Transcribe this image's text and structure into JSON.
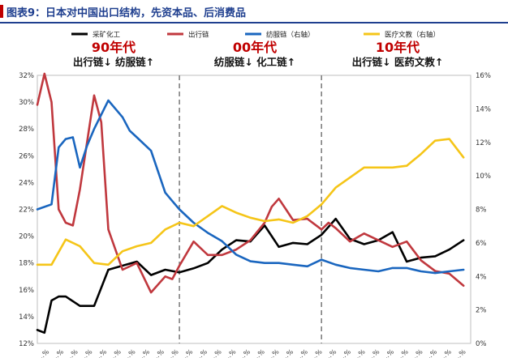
{
  "title": "图表9：日本对中国出口结构，先资本品、后消费品",
  "chart_data": {
    "type": "line",
    "xlim": [
      1990,
      2020.5
    ],
    "ylim_left": [
      12,
      32
    ],
    "ylim_right": [
      0,
      16
    ],
    "left_ticks": [
      "12%",
      "14%",
      "16%",
      "18%",
      "20%",
      "22%",
      "24%",
      "26%",
      "28%",
      "30%",
      "32%"
    ],
    "right_ticks": [
      "0%",
      "2%",
      "4%",
      "6%",
      "8%",
      "10%",
      "12%",
      "14%",
      "16%"
    ],
    "x_tick_labels": [
      "…%",
      "…%",
      "…%",
      "…%",
      "…%",
      "…%",
      "…%",
      "…%",
      "…%",
      "…%",
      "…%",
      "…%",
      "…%",
      "…%",
      "…%",
      "…%",
      "…%",
      "…%",
      "…%",
      "…%",
      "…%",
      "…%",
      "…%",
      "…%",
      "…%",
      "…%",
      "…%",
      "…%",
      "…%",
      "…%"
    ],
    "dividers": [
      2000,
      2010
    ],
    "eras": [
      {
        "year_label": "90年代",
        "desc": "出行链↓ 纺服链↑"
      },
      {
        "year_label": "00年代",
        "desc": "纺服链↓ 化工链↑"
      },
      {
        "year_label": "10年代",
        "desc": "出行链↓ 医药文教↑"
      }
    ],
    "series": [
      {
        "name": "采矿化工",
        "axis": "left",
        "color": "#000000",
        "x": [
          1990,
          1990.5,
          1991,
          1991.5,
          1992,
          1993,
          1994,
          1995,
          1996,
          1997,
          1998,
          1999,
          2000,
          2001,
          2002,
          2003,
          2004,
          2005,
          2006,
          2007,
          2008,
          2009,
          2010,
          2011,
          2012,
          2013,
          2014,
          2015,
          2016,
          2017,
          2018,
          2019,
          2020
        ],
        "values": [
          13.0,
          12.8,
          15.2,
          15.5,
          15.5,
          14.8,
          14.8,
          17.5,
          17.8,
          18.1,
          17.1,
          17.5,
          17.3,
          17.6,
          18.0,
          19.0,
          19.7,
          19.6,
          20.8,
          19.2,
          19.5,
          19.4,
          20.1,
          21.3,
          19.8,
          19.4,
          19.7,
          20.3,
          18.1,
          18.4,
          18.5,
          19.0,
          19.7
        ]
      },
      {
        "name": "出行链",
        "axis": "left",
        "color": "#c0383e",
        "x": [
          1990,
          1990.5,
          1991,
          1991.5,
          1992,
          1992.5,
          1993,
          1994,
          1994.5,
          1995,
          1996,
          1997,
          1998,
          1999,
          1999.5,
          2000,
          2001,
          2002,
          2003,
          2004,
          2005,
          2006,
          2006.5,
          2007,
          2007.5,
          2008,
          2009,
          2010,
          2010.5,
          2011,
          2012,
          2013,
          2014,
          2015,
          2016,
          2017,
          2018,
          2019,
          2020
        ],
        "values": [
          29.8,
          33,
          30.0,
          22,
          21.0,
          20.8,
          23.5,
          30.5,
          28.5,
          20.5,
          17.5,
          18.0,
          15.8,
          17.0,
          16.8,
          17.8,
          19.6,
          18.6,
          18.6,
          19.0,
          19.7,
          21.0,
          22.2,
          22.8,
          22.0,
          21.2,
          21.3,
          20.5,
          21.0,
          20.6,
          19.6,
          20.2,
          19.7,
          19.2,
          19.6,
          18.2,
          17.4,
          17.2,
          16.3
        ]
      },
      {
        "name": "纺服链（右轴）",
        "axis": "right",
        "color": "#1a66bf",
        "x": [
          1990,
          1991,
          1991.5,
          1992,
          1992.5,
          1993,
          1993.5,
          1994,
          1995,
          1996,
          1996.5,
          1997,
          1998,
          1999,
          1999.5,
          2000,
          2001,
          2002,
          2003,
          2004,
          2005,
          2006,
          2007,
          2008,
          2009,
          2010,
          2011,
          2012,
          2013,
          2014,
          2015,
          2016,
          2017,
          2018,
          2019,
          2020
        ],
        "values": [
          8.0,
          8.3,
          11.7,
          12.2,
          12.3,
          10.5,
          11.8,
          12.8,
          14.5,
          13.5,
          12.7,
          12.3,
          11.5,
          9.0,
          8.5,
          8.0,
          7.2,
          6.6,
          6.1,
          5.3,
          4.9,
          4.8,
          4.8,
          4.7,
          4.6,
          5.0,
          4.7,
          4.5,
          4.4,
          4.3,
          4.5,
          4.5,
          4.3,
          4.2,
          4.3,
          4.4
        ]
      },
      {
        "name": "医疗文教（右轴）",
        "axis": "right",
        "color": "#f5c518",
        "x": [
          1990,
          1991,
          1992,
          1993,
          1994,
          1995,
          1996,
          1997,
          1998,
          1999,
          2000,
          2001,
          2002,
          2003,
          2004,
          2005,
          2006,
          2007,
          2008,
          2009,
          2010,
          2011,
          2012,
          2013,
          2014,
          2015,
          2016,
          2017,
          2018,
          2019,
          2020
        ],
        "values": [
          4.7,
          4.7,
          6.2,
          5.8,
          4.8,
          4.7,
          5.5,
          5.8,
          6.0,
          6.8,
          7.2,
          7.0,
          7.6,
          8.2,
          7.8,
          7.5,
          7.3,
          7.4,
          7.2,
          7.6,
          8.3,
          9.3,
          9.9,
          10.5,
          10.5,
          10.5,
          10.6,
          11.3,
          12.1,
          12.2,
          11.1
        ]
      }
    ]
  }
}
